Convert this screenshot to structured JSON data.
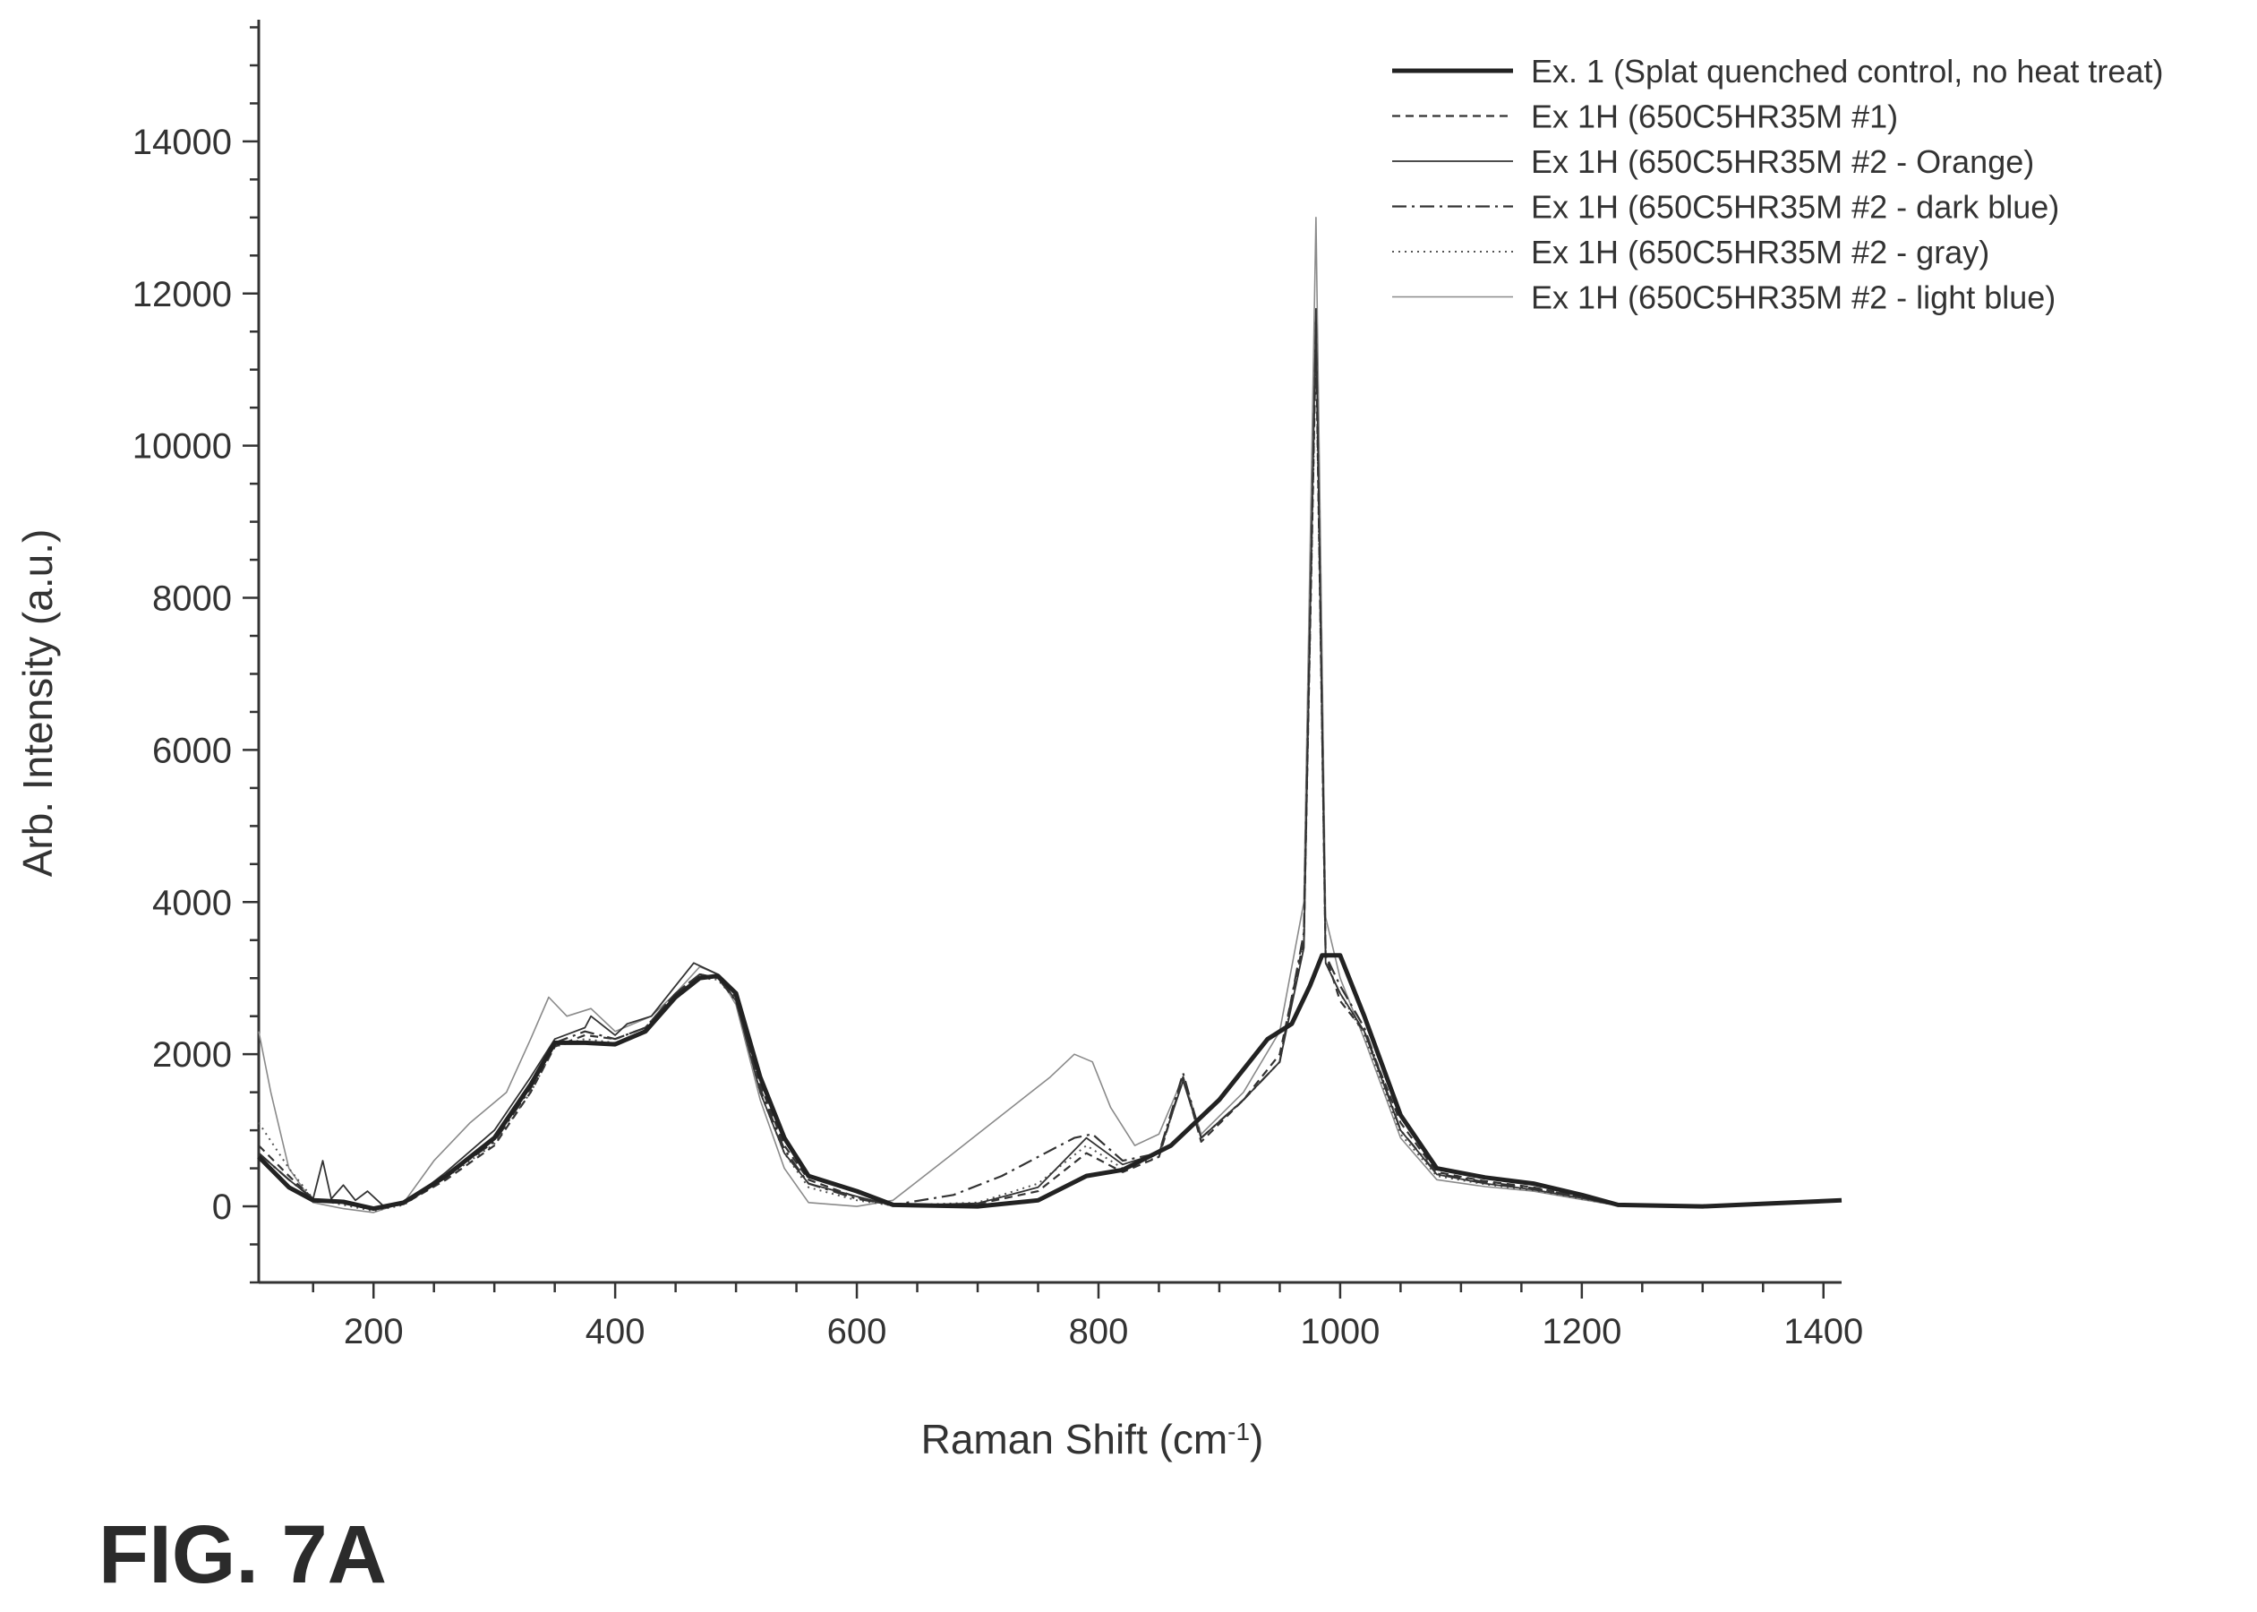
{
  "figure_label": "FIG. 7A",
  "chart_data": {
    "type": "line",
    "title": "",
    "xlabel": "Raman Shift (cm",
    "xlabel_sup": "-1",
    "xlabel_suffix": ")",
    "ylabel": "Arb. Intensity (a.u.)",
    "xlim": [
      105,
      1415
    ],
    "ylim": [
      -1000,
      15600
    ],
    "xticks": [
      200,
      400,
      600,
      800,
      1000,
      1200,
      1400
    ],
    "yticks": [
      0,
      2000,
      4000,
      6000,
      8000,
      10000,
      12000,
      14000
    ],
    "legend_position": "top-right",
    "grid": false,
    "series": [
      {
        "name": "Ex. 1 (Splat quenched control, no heat treat)",
        "style": "solid-bold",
        "points": [
          [
            105,
            650
          ],
          [
            130,
            250
          ],
          [
            150,
            80
          ],
          [
            175,
            60
          ],
          [
            200,
            -30
          ],
          [
            225,
            50
          ],
          [
            260,
            400
          ],
          [
            300,
            900
          ],
          [
            330,
            1600
          ],
          [
            350,
            2150
          ],
          [
            375,
            2150
          ],
          [
            400,
            2130
          ],
          [
            425,
            2300
          ],
          [
            450,
            2750
          ],
          [
            470,
            3000
          ],
          [
            485,
            3030
          ],
          [
            500,
            2800
          ],
          [
            520,
            1700
          ],
          [
            540,
            900
          ],
          [
            560,
            400
          ],
          [
            600,
            200
          ],
          [
            630,
            20
          ],
          [
            700,
            0
          ],
          [
            750,
            80
          ],
          [
            790,
            400
          ],
          [
            820,
            480
          ],
          [
            860,
            800
          ],
          [
            900,
            1400
          ],
          [
            940,
            2200
          ],
          [
            960,
            2400
          ],
          [
            975,
            2900
          ],
          [
            985,
            3300
          ],
          [
            1000,
            3300
          ],
          [
            1020,
            2500
          ],
          [
            1050,
            1200
          ],
          [
            1080,
            500
          ],
          [
            1120,
            380
          ],
          [
            1160,
            300
          ],
          [
            1200,
            150
          ],
          [
            1230,
            20
          ],
          [
            1300,
            0
          ],
          [
            1415,
            80
          ]
        ]
      },
      {
        "name": "Ex 1H (650C5HR35M #1)",
        "style": "dashed",
        "points": [
          [
            105,
            800
          ],
          [
            130,
            400
          ],
          [
            150,
            100
          ],
          [
            175,
            40
          ],
          [
            200,
            -40
          ],
          [
            225,
            30
          ],
          [
            260,
            350
          ],
          [
            300,
            800
          ],
          [
            330,
            1500
          ],
          [
            350,
            2100
          ],
          [
            375,
            2250
          ],
          [
            400,
            2200
          ],
          [
            425,
            2350
          ],
          [
            450,
            2800
          ],
          [
            470,
            3050
          ],
          [
            485,
            3000
          ],
          [
            500,
            2750
          ],
          [
            520,
            1600
          ],
          [
            540,
            800
          ],
          [
            560,
            350
          ],
          [
            600,
            120
          ],
          [
            630,
            10
          ],
          [
            700,
            30
          ],
          [
            750,
            200
          ],
          [
            790,
            700
          ],
          [
            820,
            450
          ],
          [
            850,
            650
          ],
          [
            870,
            1700
          ],
          [
            885,
            850
          ],
          [
            920,
            1400
          ],
          [
            950,
            2000
          ],
          [
            970,
            3500
          ],
          [
            980,
            11400
          ],
          [
            988,
            3300
          ],
          [
            1000,
            2700
          ],
          [
            1020,
            2300
          ],
          [
            1050,
            1100
          ],
          [
            1080,
            450
          ],
          [
            1120,
            330
          ],
          [
            1160,
            250
          ],
          [
            1200,
            120
          ],
          [
            1230,
            10
          ],
          [
            1300,
            0
          ],
          [
            1415,
            80
          ]
        ]
      },
      {
        "name": "Ex 1H (650C5HR35M #2 - Orange)",
        "style": "thin-solid",
        "points": [
          [
            105,
            700
          ],
          [
            130,
            350
          ],
          [
            150,
            100
          ],
          [
            158,
            600
          ],
          [
            165,
            100
          ],
          [
            175,
            280
          ],
          [
            185,
            80
          ],
          [
            195,
            200
          ],
          [
            210,
            -20
          ],
          [
            230,
            80
          ],
          [
            260,
            450
          ],
          [
            300,
            1000
          ],
          [
            330,
            1700
          ],
          [
            350,
            2200
          ],
          [
            375,
            2350
          ],
          [
            380,
            2500
          ],
          [
            400,
            2250
          ],
          [
            410,
            2400
          ],
          [
            430,
            2500
          ],
          [
            450,
            2900
          ],
          [
            465,
            3200
          ],
          [
            485,
            3050
          ],
          [
            500,
            2700
          ],
          [
            520,
            1500
          ],
          [
            540,
            700
          ],
          [
            560,
            300
          ],
          [
            600,
            130
          ],
          [
            630,
            10
          ],
          [
            700,
            40
          ],
          [
            750,
            250
          ],
          [
            790,
            900
          ],
          [
            820,
            550
          ],
          [
            850,
            700
          ],
          [
            870,
            1650
          ],
          [
            885,
            900
          ],
          [
            920,
            1400
          ],
          [
            950,
            1900
          ],
          [
            970,
            3400
          ],
          [
            980,
            11800
          ],
          [
            988,
            3200
          ],
          [
            1000,
            2800
          ],
          [
            1020,
            2300
          ],
          [
            1050,
            1000
          ],
          [
            1080,
            420
          ],
          [
            1120,
            300
          ],
          [
            1160,
            220
          ],
          [
            1200,
            110
          ],
          [
            1230,
            10
          ],
          [
            1300,
            0
          ],
          [
            1415,
            80
          ]
        ]
      },
      {
        "name": "Ex 1H (650C5HR35M #2 - dark blue)",
        "style": "dashdot",
        "points": [
          [
            105,
            700
          ],
          [
            130,
            350
          ],
          [
            150,
            100
          ],
          [
            175,
            50
          ],
          [
            200,
            -40
          ],
          [
            225,
            40
          ],
          [
            260,
            400
          ],
          [
            300,
            850
          ],
          [
            330,
            1550
          ],
          [
            350,
            2150
          ],
          [
            375,
            2300
          ],
          [
            400,
            2200
          ],
          [
            425,
            2350
          ],
          [
            450,
            2800
          ],
          [
            470,
            3050
          ],
          [
            485,
            3000
          ],
          [
            500,
            2700
          ],
          [
            520,
            1550
          ],
          [
            540,
            750
          ],
          [
            560,
            300
          ],
          [
            600,
            100
          ],
          [
            630,
            20
          ],
          [
            680,
            150
          ],
          [
            720,
            400
          ],
          [
            750,
            650
          ],
          [
            780,
            900
          ],
          [
            795,
            950
          ],
          [
            820,
            600
          ],
          [
            850,
            700
          ],
          [
            870,
            1750
          ],
          [
            885,
            900
          ],
          [
            920,
            1400
          ],
          [
            950,
            1900
          ],
          [
            970,
            3600
          ],
          [
            980,
            11650
          ],
          [
            988,
            3300
          ],
          [
            1000,
            2900
          ],
          [
            1020,
            2350
          ],
          [
            1050,
            1000
          ],
          [
            1080,
            430
          ],
          [
            1120,
            320
          ],
          [
            1160,
            240
          ],
          [
            1200,
            120
          ],
          [
            1230,
            10
          ],
          [
            1300,
            0
          ],
          [
            1415,
            80
          ]
        ]
      },
      {
        "name": "Ex 1H (650C5HR35M #2 - gray)",
        "style": "dotted",
        "points": [
          [
            105,
            1100
          ],
          [
            130,
            500
          ],
          [
            150,
            100
          ],
          [
            175,
            20
          ],
          [
            200,
            -60
          ],
          [
            225,
            20
          ],
          [
            260,
            380
          ],
          [
            300,
            820
          ],
          [
            330,
            1500
          ],
          [
            350,
            2100
          ],
          [
            375,
            2200
          ],
          [
            400,
            2150
          ],
          [
            425,
            2300
          ],
          [
            450,
            2750
          ],
          [
            470,
            3000
          ],
          [
            485,
            2980
          ],
          [
            500,
            2700
          ],
          [
            520,
            1500
          ],
          [
            540,
            700
          ],
          [
            560,
            250
          ],
          [
            600,
            80
          ],
          [
            630,
            10
          ],
          [
            700,
            50
          ],
          [
            750,
            300
          ],
          [
            790,
            800
          ],
          [
            820,
            500
          ],
          [
            850,
            650
          ],
          [
            870,
            1700
          ],
          [
            885,
            900
          ],
          [
            920,
            1400
          ],
          [
            950,
            1900
          ],
          [
            970,
            3500
          ],
          [
            980,
            11300
          ],
          [
            988,
            3200
          ],
          [
            1000,
            2800
          ],
          [
            1020,
            2250
          ],
          [
            1050,
            950
          ],
          [
            1080,
            400
          ],
          [
            1120,
            290
          ],
          [
            1160,
            210
          ],
          [
            1200,
            100
          ],
          [
            1230,
            10
          ],
          [
            1300,
            0
          ],
          [
            1415,
            80
          ]
        ]
      },
      {
        "name": "Ex 1H (650C5HR35M #2 - light blue)",
        "style": "light-solid",
        "points": [
          [
            105,
            2300
          ],
          [
            115,
            1500
          ],
          [
            130,
            500
          ],
          [
            150,
            50
          ],
          [
            175,
            -30
          ],
          [
            200,
            -80
          ],
          [
            225,
            50
          ],
          [
            250,
            600
          ],
          [
            280,
            1100
          ],
          [
            310,
            1500
          ],
          [
            330,
            2200
          ],
          [
            345,
            2750
          ],
          [
            360,
            2500
          ],
          [
            380,
            2600
          ],
          [
            400,
            2300
          ],
          [
            430,
            2500
          ],
          [
            450,
            2800
          ],
          [
            470,
            3150
          ],
          [
            485,
            3050
          ],
          [
            500,
            2650
          ],
          [
            520,
            1400
          ],
          [
            540,
            500
          ],
          [
            560,
            50
          ],
          [
            600,
            0
          ],
          [
            630,
            80
          ],
          [
            680,
            700
          ],
          [
            720,
            1200
          ],
          [
            760,
            1700
          ],
          [
            780,
            2000
          ],
          [
            795,
            1900
          ],
          [
            810,
            1300
          ],
          [
            830,
            800
          ],
          [
            850,
            950
          ],
          [
            870,
            1700
          ],
          [
            885,
            950
          ],
          [
            920,
            1500
          ],
          [
            950,
            2300
          ],
          [
            970,
            4000
          ],
          [
            980,
            13000
          ],
          [
            988,
            3800
          ],
          [
            1000,
            3000
          ],
          [
            1020,
            2200
          ],
          [
            1050,
            900
          ],
          [
            1080,
            350
          ],
          [
            1120,
            260
          ],
          [
            1160,
            200
          ],
          [
            1200,
            90
          ],
          [
            1230,
            10
          ],
          [
            1300,
            0
          ],
          [
            1415,
            80
          ]
        ]
      }
    ]
  }
}
